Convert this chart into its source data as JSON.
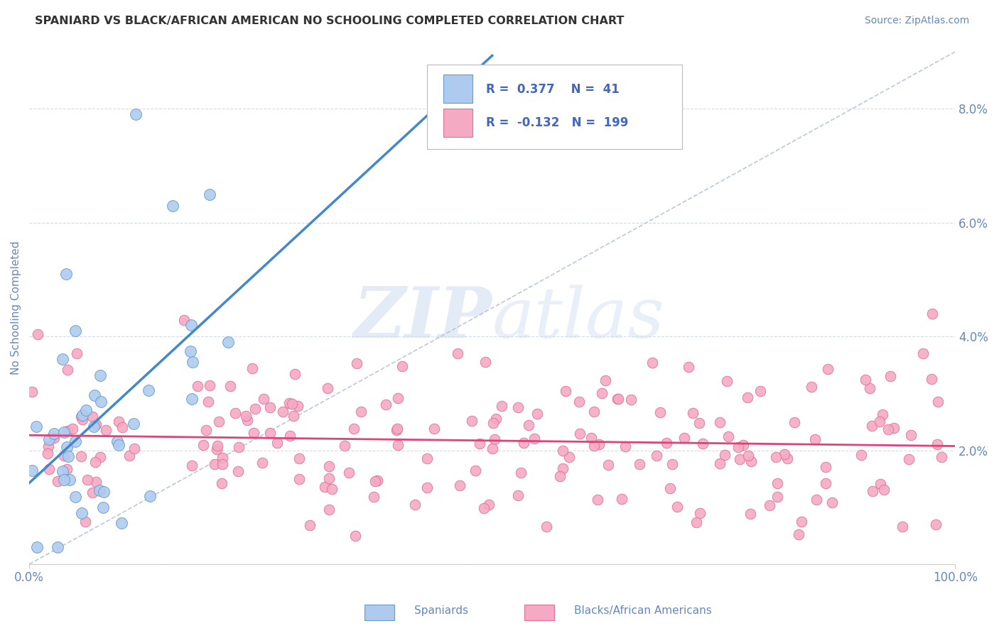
{
  "title": "SPANIARD VS BLACK/AFRICAN AMERICAN NO SCHOOLING COMPLETED CORRELATION CHART",
  "source": "Source: ZipAtlas.com",
  "ylabel": "No Schooling Completed",
  "xlim": [
    0.0,
    1.0
  ],
  "ylim": [
    0.0,
    0.09
  ],
  "yticks": [
    0.0,
    0.02,
    0.04,
    0.06,
    0.08
  ],
  "ytick_labels": [
    "",
    "2.0%",
    "4.0%",
    "6.0%",
    "8.0%"
  ],
  "xtick_labels": [
    "0.0%",
    "100.0%"
  ],
  "xtick_pos": [
    0.0,
    1.0
  ],
  "spaniard_color": "#aecbef",
  "spaniard_edge_color": "#6699cc",
  "black_color": "#f5aac4",
  "black_edge_color": "#e07098",
  "regression_blue_color": "#4488cc",
  "regression_pink_color": "#dd4477",
  "diag_line_color": "#aabbd4",
  "R_spaniard": 0.377,
  "N_spaniard": 41,
  "R_black": -0.132,
  "N_black": 199,
  "legend_text_color": "#4466bb",
  "title_color": "#333333",
  "axis_color": "#6688bb",
  "grid_color": "#d0dde8",
  "watermark_color": "#ccddf0",
  "sp_seed": 77,
  "bk_seed": 55
}
